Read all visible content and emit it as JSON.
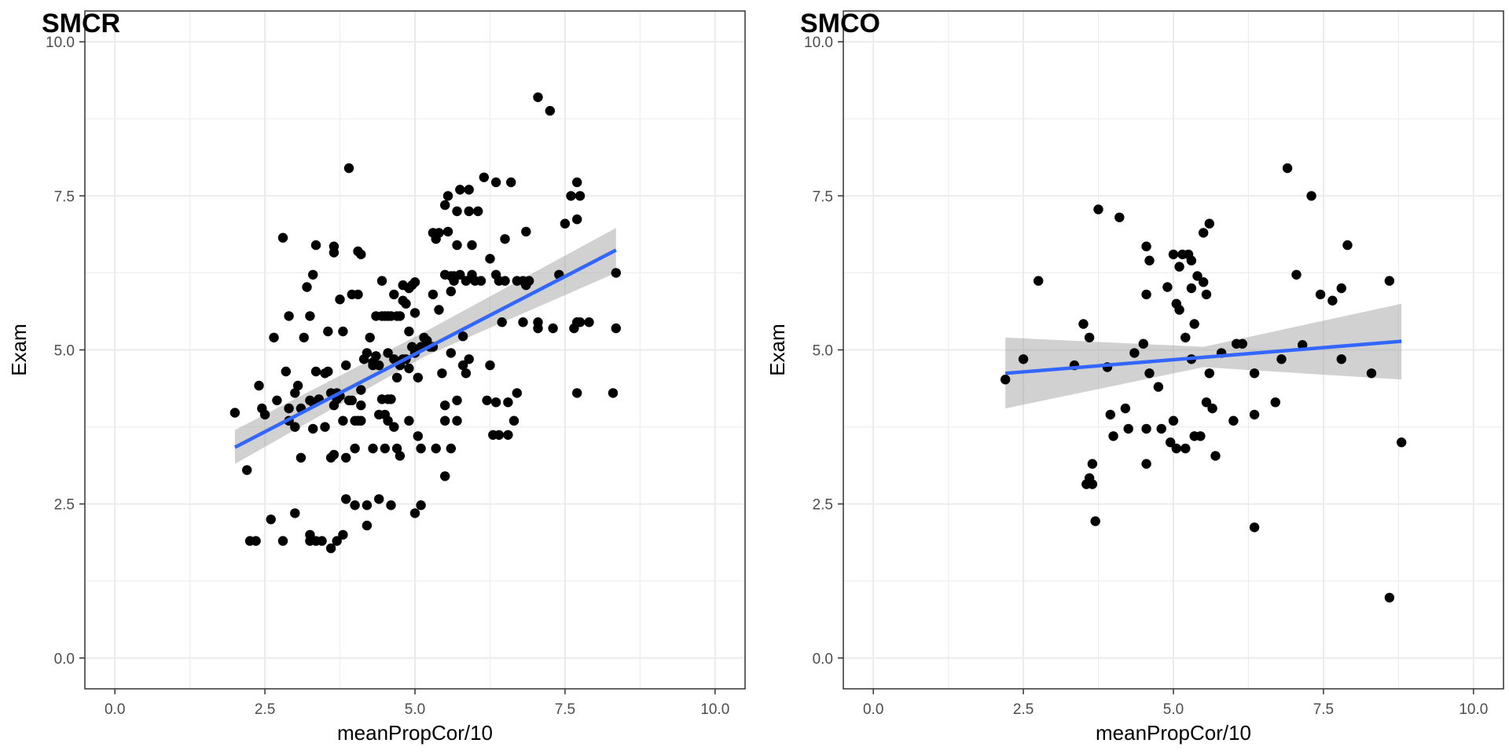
{
  "chart_data": [
    {
      "type": "scatter",
      "title": "SMCR",
      "xlabel": "meanPropCor/10",
      "ylabel": "Exam",
      "xlim": [
        -0.5,
        10.5
      ],
      "ylim": [
        -0.5,
        10.5
      ],
      "x_ticks": [
        "0.0",
        "2.5",
        "5.0",
        "7.5",
        "10.0"
      ],
      "y_ticks": [
        "0.0",
        "2.5",
        "5.0",
        "7.5",
        "10.0"
      ],
      "grid": true,
      "legend": "none",
      "colors": {
        "points": "#000000",
        "fit_line": "#3366FF",
        "confidence_band": "#999999",
        "grid": "#EBEBEB",
        "border": "#333333"
      },
      "trend": {
        "x_start": 2.0,
        "x_end": 8.35,
        "y_start": 3.42,
        "y_end": 6.62,
        "band_start": [
          3.15,
          3.7
        ],
        "band_mid": [
          4.9,
          5.3
        ],
        "band_end": [
          6.25,
          6.98
        ]
      },
      "points": [
        [
          2.0,
          3.98
        ],
        [
          2.2,
          3.05
        ],
        [
          2.25,
          1.9
        ],
        [
          2.35,
          1.9
        ],
        [
          2.4,
          4.42
        ],
        [
          2.45,
          4.05
        ],
        [
          2.5,
          3.95
        ],
        [
          2.6,
          2.25
        ],
        [
          2.65,
          5.2
        ],
        [
          2.7,
          4.18
        ],
        [
          2.8,
          6.82
        ],
        [
          2.8,
          1.9
        ],
        [
          2.85,
          4.65
        ],
        [
          2.9,
          5.55
        ],
        [
          2.9,
          3.85
        ],
        [
          2.9,
          4.05
        ],
        [
          3.0,
          4.3
        ],
        [
          3.0,
          3.75
        ],
        [
          3.0,
          2.35
        ],
        [
          3.05,
          4.42
        ],
        [
          3.1,
          4.05
        ],
        [
          3.1,
          3.25
        ],
        [
          3.15,
          5.2
        ],
        [
          3.2,
          6.02
        ],
        [
          3.25,
          5.55
        ],
        [
          3.25,
          4.18
        ],
        [
          3.25,
          2.0
        ],
        [
          3.25,
          1.9
        ],
        [
          3.3,
          6.22
        ],
        [
          3.3,
          4.15
        ],
        [
          3.3,
          3.72
        ],
        [
          3.35,
          6.7
        ],
        [
          3.35,
          4.65
        ],
        [
          3.35,
          1.9
        ],
        [
          3.4,
          4.2
        ],
        [
          3.45,
          1.9
        ],
        [
          3.5,
          4.62
        ],
        [
          3.5,
          3.75
        ],
        [
          3.55,
          4.65
        ],
        [
          3.55,
          5.3
        ],
        [
          3.6,
          4.3
        ],
        [
          3.6,
          3.25
        ],
        [
          3.6,
          1.78
        ],
        [
          3.65,
          6.68
        ],
        [
          3.65,
          6.58
        ],
        [
          3.65,
          4.1
        ],
        [
          3.65,
          3.3
        ],
        [
          3.7,
          4.3
        ],
        [
          3.7,
          4.2
        ],
        [
          3.7,
          1.9
        ],
        [
          3.75,
          5.82
        ],
        [
          3.75,
          4.25
        ],
        [
          3.8,
          5.3
        ],
        [
          3.8,
          2.0
        ],
        [
          3.8,
          3.85
        ],
        [
          3.85,
          4.75
        ],
        [
          3.85,
          3.25
        ],
        [
          3.85,
          2.58
        ],
        [
          3.9,
          7.95
        ],
        [
          3.9,
          4.18
        ],
        [
          3.95,
          5.9
        ],
        [
          3.95,
          4.18
        ],
        [
          4.0,
          3.85
        ],
        [
          4.0,
          3.4
        ],
        [
          4.0,
          2.48
        ],
        [
          4.05,
          6.6
        ],
        [
          4.05,
          5.9
        ],
        [
          4.05,
          3.85
        ],
        [
          4.1,
          6.55
        ],
        [
          4.1,
          4.35
        ],
        [
          4.1,
          4.1
        ],
        [
          4.1,
          3.85
        ],
        [
          4.15,
          4.85
        ],
        [
          4.2,
          4.95
        ],
        [
          4.2,
          2.48
        ],
        [
          4.2,
          2.15
        ],
        [
          4.25,
          5.2
        ],
        [
          4.3,
          4.8
        ],
        [
          4.3,
          4.75
        ],
        [
          4.3,
          3.4
        ],
        [
          4.35,
          5.55
        ],
        [
          4.35,
          4.9
        ],
        [
          4.4,
          4.75
        ],
        [
          4.4,
          3.95
        ],
        [
          4.4,
          2.58
        ],
        [
          4.45,
          6.12
        ],
        [
          4.45,
          5.55
        ],
        [
          4.45,
          4.2
        ],
        [
          4.5,
          5.55
        ],
        [
          4.5,
          3.95
        ],
        [
          4.5,
          3.4
        ],
        [
          4.55,
          5.55
        ],
        [
          4.55,
          4.95
        ],
        [
          4.55,
          4.2
        ],
        [
          4.55,
          3.85
        ],
        [
          4.6,
          5.55
        ],
        [
          4.6,
          4.2
        ],
        [
          4.6,
          2.48
        ],
        [
          4.65,
          5.9
        ],
        [
          4.65,
          4.85
        ],
        [
          4.65,
          3.75
        ],
        [
          4.7,
          5.55
        ],
        [
          4.7,
          4.55
        ],
        [
          4.7,
          3.4
        ],
        [
          4.75,
          5.55
        ],
        [
          4.75,
          4.75
        ],
        [
          4.75,
          3.28
        ],
        [
          4.8,
          6.05
        ],
        [
          4.8,
          5.8
        ],
        [
          4.8,
          4.85
        ],
        [
          4.85,
          5.75
        ],
        [
          4.85,
          4.85
        ],
        [
          4.9,
          6.0
        ],
        [
          4.9,
          5.3
        ],
        [
          4.9,
          4.7
        ],
        [
          4.9,
          3.85
        ],
        [
          4.95,
          6.05
        ],
        [
          4.95,
          5.05
        ],
        [
          5.0,
          6.1
        ],
        [
          5.0,
          5.6
        ],
        [
          5.0,
          4.95
        ],
        [
          5.0,
          2.35
        ],
        [
          5.05,
          4.55
        ],
        [
          5.05,
          3.6
        ],
        [
          5.1,
          5.05
        ],
        [
          5.1,
          3.4
        ],
        [
          5.1,
          2.48
        ],
        [
          5.15,
          5.2
        ],
        [
          5.2,
          5.15
        ],
        [
          5.25,
          5.05
        ],
        [
          5.3,
          6.9
        ],
        [
          5.3,
          5.9
        ],
        [
          5.3,
          5.05
        ],
        [
          5.35,
          6.8
        ],
        [
          5.35,
          3.4
        ],
        [
          5.4,
          6.9
        ],
        [
          5.4,
          5.65
        ],
        [
          5.45,
          4.62
        ],
        [
          5.5,
          7.35
        ],
        [
          5.5,
          6.22
        ],
        [
          5.5,
          4.1
        ],
        [
          5.5,
          3.85
        ],
        [
          5.5,
          2.95
        ],
        [
          5.55,
          7.5
        ],
        [
          5.55,
          6.92
        ],
        [
          5.6,
          6.2
        ],
        [
          5.6,
          5.95
        ],
        [
          5.6,
          4.95
        ],
        [
          5.6,
          3.4
        ],
        [
          5.65,
          6.2
        ],
        [
          5.65,
          6.12
        ],
        [
          5.7,
          7.25
        ],
        [
          5.7,
          6.7
        ],
        [
          5.7,
          4.18
        ],
        [
          5.7,
          3.85
        ],
        [
          5.75,
          7.6
        ],
        [
          5.75,
          6.22
        ],
        [
          5.8,
          5.22
        ],
        [
          5.8,
          4.75
        ],
        [
          5.85,
          6.12
        ],
        [
          5.85,
          4.62
        ],
        [
          5.9,
          7.6
        ],
        [
          5.9,
          7.25
        ],
        [
          5.9,
          4.85
        ],
        [
          5.95,
          6.7
        ],
        [
          5.95,
          6.22
        ],
        [
          6.0,
          6.12
        ],
        [
          6.05,
          7.25
        ],
        [
          6.1,
          6.12
        ],
        [
          6.15,
          7.8
        ],
        [
          6.2,
          4.18
        ],
        [
          6.25,
          6.48
        ],
        [
          6.25,
          4.75
        ],
        [
          6.3,
          3.62
        ],
        [
          6.35,
          7.72
        ],
        [
          6.35,
          6.22
        ],
        [
          6.35,
          4.15
        ],
        [
          6.4,
          6.12
        ],
        [
          6.4,
          3.62
        ],
        [
          6.45,
          5.45
        ],
        [
          6.5,
          6.8
        ],
        [
          6.5,
          6.12
        ],
        [
          6.55,
          4.15
        ],
        [
          6.55,
          3.62
        ],
        [
          6.6,
          7.72
        ],
        [
          6.65,
          3.85
        ],
        [
          6.7,
          6.12
        ],
        [
          6.7,
          4.3
        ],
        [
          6.8,
          6.12
        ],
        [
          6.8,
          5.45
        ],
        [
          6.85,
          6.92
        ],
        [
          6.85,
          6.05
        ],
        [
          6.9,
          6.12
        ],
        [
          7.05,
          9.1
        ],
        [
          7.05,
          5.45
        ],
        [
          7.05,
          5.35
        ],
        [
          7.25,
          8.88
        ],
        [
          7.3,
          5.35
        ],
        [
          7.4,
          6.22
        ],
        [
          7.5,
          7.05
        ],
        [
          7.6,
          7.5
        ],
        [
          7.65,
          5.35
        ],
        [
          7.7,
          7.72
        ],
        [
          7.7,
          7.12
        ],
        [
          7.7,
          4.3
        ],
        [
          7.7,
          5.45
        ],
        [
          7.75,
          7.5
        ],
        [
          7.75,
          5.45
        ],
        [
          7.9,
          5.45
        ],
        [
          8.3,
          4.3
        ],
        [
          8.35,
          6.25
        ],
        [
          8.35,
          5.35
        ]
      ]
    },
    {
      "type": "scatter",
      "title": "SMCO",
      "xlabel": "meanPropCor/10",
      "ylabel": "Exam",
      "xlim": [
        -0.5,
        10.5
      ],
      "ylim": [
        -0.5,
        10.5
      ],
      "x_ticks": [
        "0.0",
        "2.5",
        "5.0",
        "7.5",
        "10.0"
      ],
      "y_ticks": [
        "0.0",
        "2.5",
        "5.0",
        "7.5",
        "10.0"
      ],
      "grid": true,
      "legend": "none",
      "colors": {
        "points": "#000000",
        "fit_line": "#3366FF",
        "confidence_band": "#999999",
        "grid": "#EBEBEB",
        "border": "#333333"
      },
      "trend": {
        "x_start": 2.2,
        "x_end": 8.8,
        "y_start": 4.62,
        "y_end": 5.14,
        "band_start": [
          4.05,
          5.2
        ],
        "band_mid": [
          4.72,
          5.05
        ],
        "band_end": [
          4.52,
          5.75
        ]
      },
      "points": [
        [
          2.2,
          4.52
        ],
        [
          2.5,
          4.85
        ],
        [
          2.75,
          6.12
        ],
        [
          3.35,
          4.75
        ],
        [
          3.5,
          5.42
        ],
        [
          3.55,
          2.82
        ],
        [
          3.6,
          5.2
        ],
        [
          3.6,
          2.92
        ],
        [
          3.65,
          3.15
        ],
        [
          3.65,
          2.82
        ],
        [
          3.7,
          2.22
        ],
        [
          3.75,
          7.28
        ],
        [
          3.9,
          4.72
        ],
        [
          3.95,
          3.95
        ],
        [
          4.0,
          3.6
        ],
        [
          4.1,
          7.15
        ],
        [
          4.2,
          4.05
        ],
        [
          4.25,
          3.72
        ],
        [
          4.35,
          4.95
        ],
        [
          4.5,
          5.1
        ],
        [
          4.55,
          6.68
        ],
        [
          4.55,
          3.15
        ],
        [
          4.6,
          6.45
        ],
        [
          4.6,
          4.62
        ],
        [
          4.55,
          5.9
        ],
        [
          4.55,
          3.72
        ],
        [
          4.75,
          4.4
        ],
        [
          4.8,
          3.72
        ],
        [
          4.9,
          6.02
        ],
        [
          4.95,
          3.5
        ],
        [
          5.0,
          6.55
        ],
        [
          5.0,
          3.85
        ],
        [
          5.05,
          5.75
        ],
        [
          5.05,
          3.4
        ],
        [
          5.1,
          6.35
        ],
        [
          5.1,
          5.65
        ],
        [
          5.15,
          6.55
        ],
        [
          5.2,
          3.4
        ],
        [
          5.2,
          5.2
        ],
        [
          5.25,
          6.55
        ],
        [
          5.3,
          6.45
        ],
        [
          5.3,
          4.85
        ],
        [
          5.3,
          6.0
        ],
        [
          5.35,
          5.42
        ],
        [
          5.4,
          6.2
        ],
        [
          5.35,
          3.6
        ],
        [
          5.45,
          3.6
        ],
        [
          5.5,
          6.9
        ],
        [
          5.5,
          6.1
        ],
        [
          5.55,
          5.9
        ],
        [
          5.55,
          4.15
        ],
        [
          5.6,
          7.05
        ],
        [
          5.6,
          4.62
        ],
        [
          5.65,
          4.05
        ],
        [
          5.7,
          3.28
        ],
        [
          5.8,
          4.95
        ],
        [
          6.0,
          3.85
        ],
        [
          6.05,
          5.1
        ],
        [
          6.15,
          5.1
        ],
        [
          6.35,
          4.62
        ],
        [
          6.35,
          3.95
        ],
        [
          6.35,
          2.12
        ],
        [
          6.7,
          4.15
        ],
        [
          6.8,
          4.85
        ],
        [
          6.9,
          7.95
        ],
        [
          7.05,
          6.22
        ],
        [
          7.15,
          5.08
        ],
        [
          7.3,
          7.5
        ],
        [
          7.45,
          5.9
        ],
        [
          7.65,
          5.8
        ],
        [
          7.8,
          6.0
        ],
        [
          7.8,
          4.85
        ],
        [
          7.9,
          6.7
        ],
        [
          8.3,
          4.62
        ],
        [
          8.6,
          6.12
        ],
        [
          8.6,
          0.98
        ],
        [
          8.8,
          3.5
        ]
      ]
    }
  ]
}
